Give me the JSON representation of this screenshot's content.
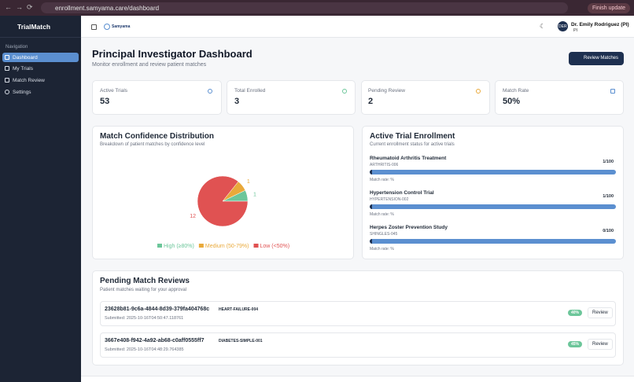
{
  "browser": {
    "url": "enrollment.samyama.care/dashboard",
    "update": "Finish update"
  },
  "sidebar": {
    "brand": "TrialMatch",
    "section": "Navigation",
    "items": [
      "Dashboard",
      "My Trials",
      "Match Review",
      "Settings"
    ]
  },
  "topbar": {
    "logo": "Samyama",
    "user": "Dr. Emily Rodriguez (PI)",
    "role": "PI",
    "initials": "DER"
  },
  "header": {
    "title": "Principal Investigator Dashboard",
    "subtitle": "Monitor enrollment and review patient matches",
    "button": "Review Matches"
  },
  "stats": [
    {
      "label": "Active Trials",
      "value": 53
    },
    {
      "label": "Total Enrolled",
      "value": 3
    },
    {
      "label": "Pending Review",
      "value": 2
    },
    {
      "label": "Match Rate",
      "value": "50%"
    }
  ],
  "match_confidence": {
    "title": "Match Confidence Distribution",
    "subtitle": "Breakdown of patient matches by confidence level",
    "chart": {
      "type": "pie",
      "categories": [
        "High (≥80%)",
        "Medium (50-79%)",
        "Low (<50%)"
      ],
      "values": [
        1,
        1,
        12
      ],
      "colors": [
        "#6cc69a",
        "#e9a93a",
        "#e05252"
      ]
    }
  },
  "enrollment": {
    "title": "Active Trial Enrollment",
    "subtitle": "Current enrollment status for active trials",
    "trials": [
      {
        "name": "Rheumatoid Arthritis Treatment",
        "code": "ARTHRITIS-006",
        "count": "1/100",
        "rate": "Match rate: %"
      },
      {
        "name": "Hypertension Control Trial",
        "code": "HYPERTENSION-002",
        "count": "1/100",
        "rate": "Match rate: %"
      },
      {
        "name": "Herpes Zoster Prevention Study",
        "code": "SHINGLES-045",
        "count": "0/100",
        "rate": "Match rate: %"
      }
    ]
  },
  "reviews": {
    "title": "Pending Match Reviews",
    "subtitle": "Patient matches waiting for your approval",
    "items": [
      {
        "id": "23628b81-9c6a-4844-8d39-379fa404768c",
        "trial": "HEART-FAILURE-004",
        "submitted": "Submitted: 2025-10-16T04:50:47.118761",
        "score": "40%",
        "action": "Review"
      },
      {
        "id": "3667e408-f942-4a92-ab68-c0aff0555ff7",
        "trial": "DIABETES-SIMPLE-001",
        "submitted": "Submitted: 2025-10-16T04:48:29.764385",
        "score": "45%",
        "action": "Review"
      }
    ]
  }
}
